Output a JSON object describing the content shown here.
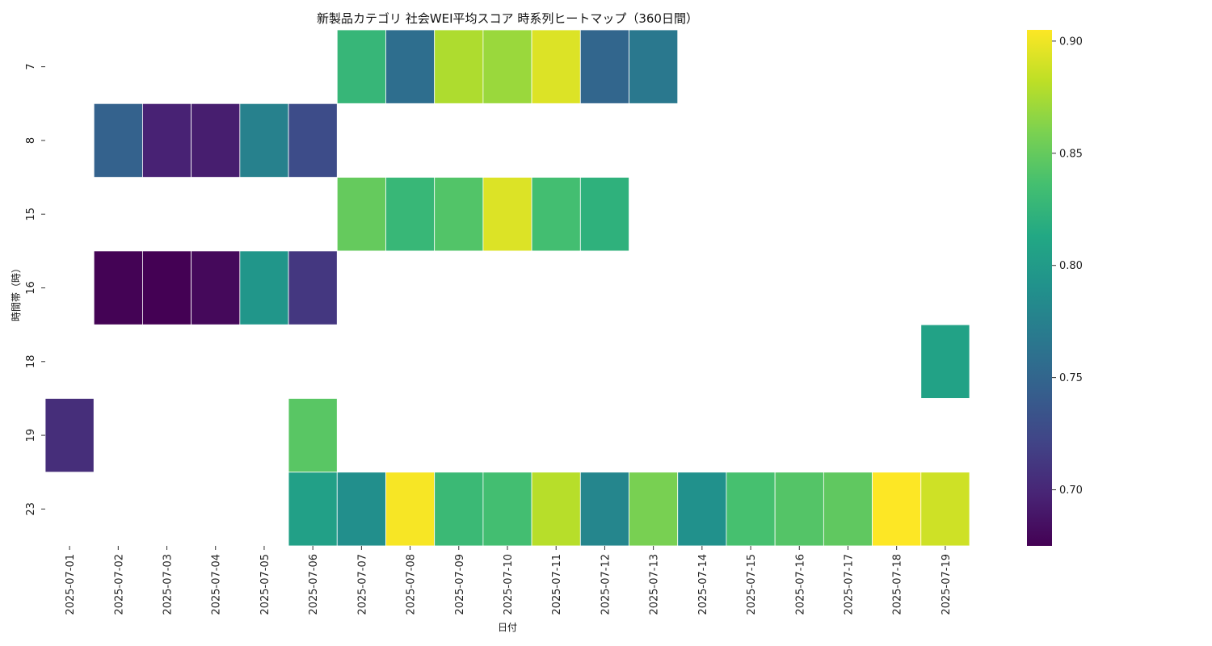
{
  "chart_data": {
    "type": "heatmap",
    "title": "新製品カテゴリ 社会WEI平均スコア 時系列ヒートマップ（360日間）",
    "xlabel": "日付",
    "ylabel": "時間帯（時）",
    "colormap": "viridis",
    "x": [
      "2025-07-01",
      "2025-07-02",
      "2025-07-03",
      "2025-07-04",
      "2025-07-05",
      "2025-07-06",
      "2025-07-07",
      "2025-07-08",
      "2025-07-09",
      "2025-07-10",
      "2025-07-11",
      "2025-07-12",
      "2025-07-13",
      "2025-07-14",
      "2025-07-15",
      "2025-07-16",
      "2025-07-17",
      "2025-07-18",
      "2025-07-19"
    ],
    "y": [
      "7",
      "8",
      "15",
      "16",
      "18",
      "19",
      "23"
    ],
    "values": [
      [
        null,
        null,
        null,
        null,
        null,
        null,
        0.827,
        0.758,
        0.877,
        0.87,
        0.893,
        0.75,
        0.767,
        null,
        null,
        null,
        null,
        null,
        null
      ],
      [
        null,
        0.747,
        0.697,
        0.694,
        0.775,
        0.728,
        null,
        null,
        null,
        null,
        null,
        null,
        null,
        null,
        null,
        null,
        null,
        null,
        null
      ],
      [
        null,
        null,
        null,
        null,
        null,
        null,
        0.85,
        0.828,
        0.842,
        0.893,
        0.835,
        0.822,
        null,
        null,
        null,
        null,
        null,
        null,
        null
      ],
      [
        null,
        0.676,
        0.675,
        0.68,
        0.795,
        0.712,
        null,
        null,
        null,
        null,
        null,
        null,
        null,
        null,
        null,
        null,
        null,
        null,
        null
      ],
      [
        null,
        null,
        null,
        null,
        null,
        null,
        null,
        null,
        null,
        null,
        null,
        null,
        null,
        null,
        null,
        null,
        null,
        null,
        0.807
      ],
      [
        0.705,
        null,
        null,
        null,
        null,
        0.845,
        null,
        null,
        null,
        null,
        null,
        null,
        null,
        null,
        null,
        null,
        null,
        null,
        null
      ],
      [
        null,
        null,
        null,
        null,
        null,
        0.805,
        0.788,
        0.903,
        0.83,
        0.835,
        0.88,
        0.78,
        0.858,
        0.79,
        0.837,
        0.843,
        0.848,
        0.905,
        0.888
      ]
    ],
    "colorbar": {
      "min": 0.675,
      "max": 0.905,
      "ticks": [
        "0.70",
        "0.75",
        "0.80",
        "0.85",
        "0.90"
      ]
    }
  }
}
